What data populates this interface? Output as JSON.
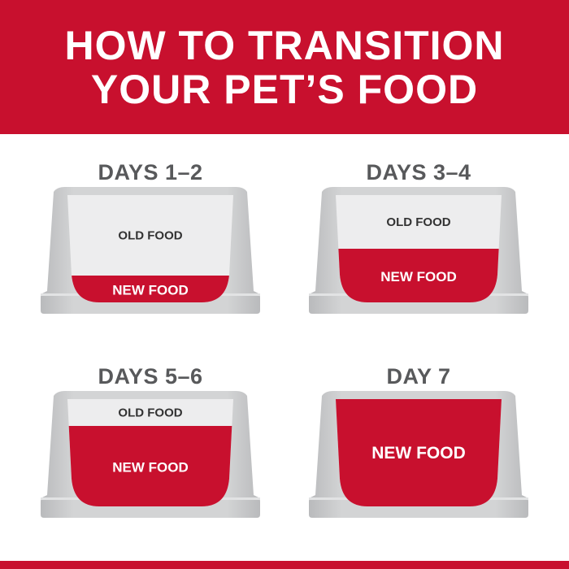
{
  "header": {
    "line1": "HOW TO TRANSITION",
    "line2": "YOUR PET’S FOOD"
  },
  "colors": {
    "brand_red": "#c8102e",
    "bowl_gray": "#cbcccd",
    "old_food": "#ededee",
    "label_gray": "#58595b"
  },
  "stages": [
    {
      "label": "DAYS 1–2",
      "old_label": "OLD FOOD",
      "new_label": "NEW FOOD",
      "new_food_fraction": 0.25
    },
    {
      "label": "DAYS 3–4",
      "old_label": "OLD FOOD",
      "new_label": "NEW FOOD",
      "new_food_fraction": 0.5
    },
    {
      "label": "DAYS 5–6",
      "old_label": "OLD FOOD",
      "new_label": "NEW FOOD",
      "new_food_fraction": 0.75
    },
    {
      "label": "DAY 7",
      "old_label": "",
      "new_label": "NEW FOOD",
      "new_food_fraction": 1.0
    }
  ]
}
